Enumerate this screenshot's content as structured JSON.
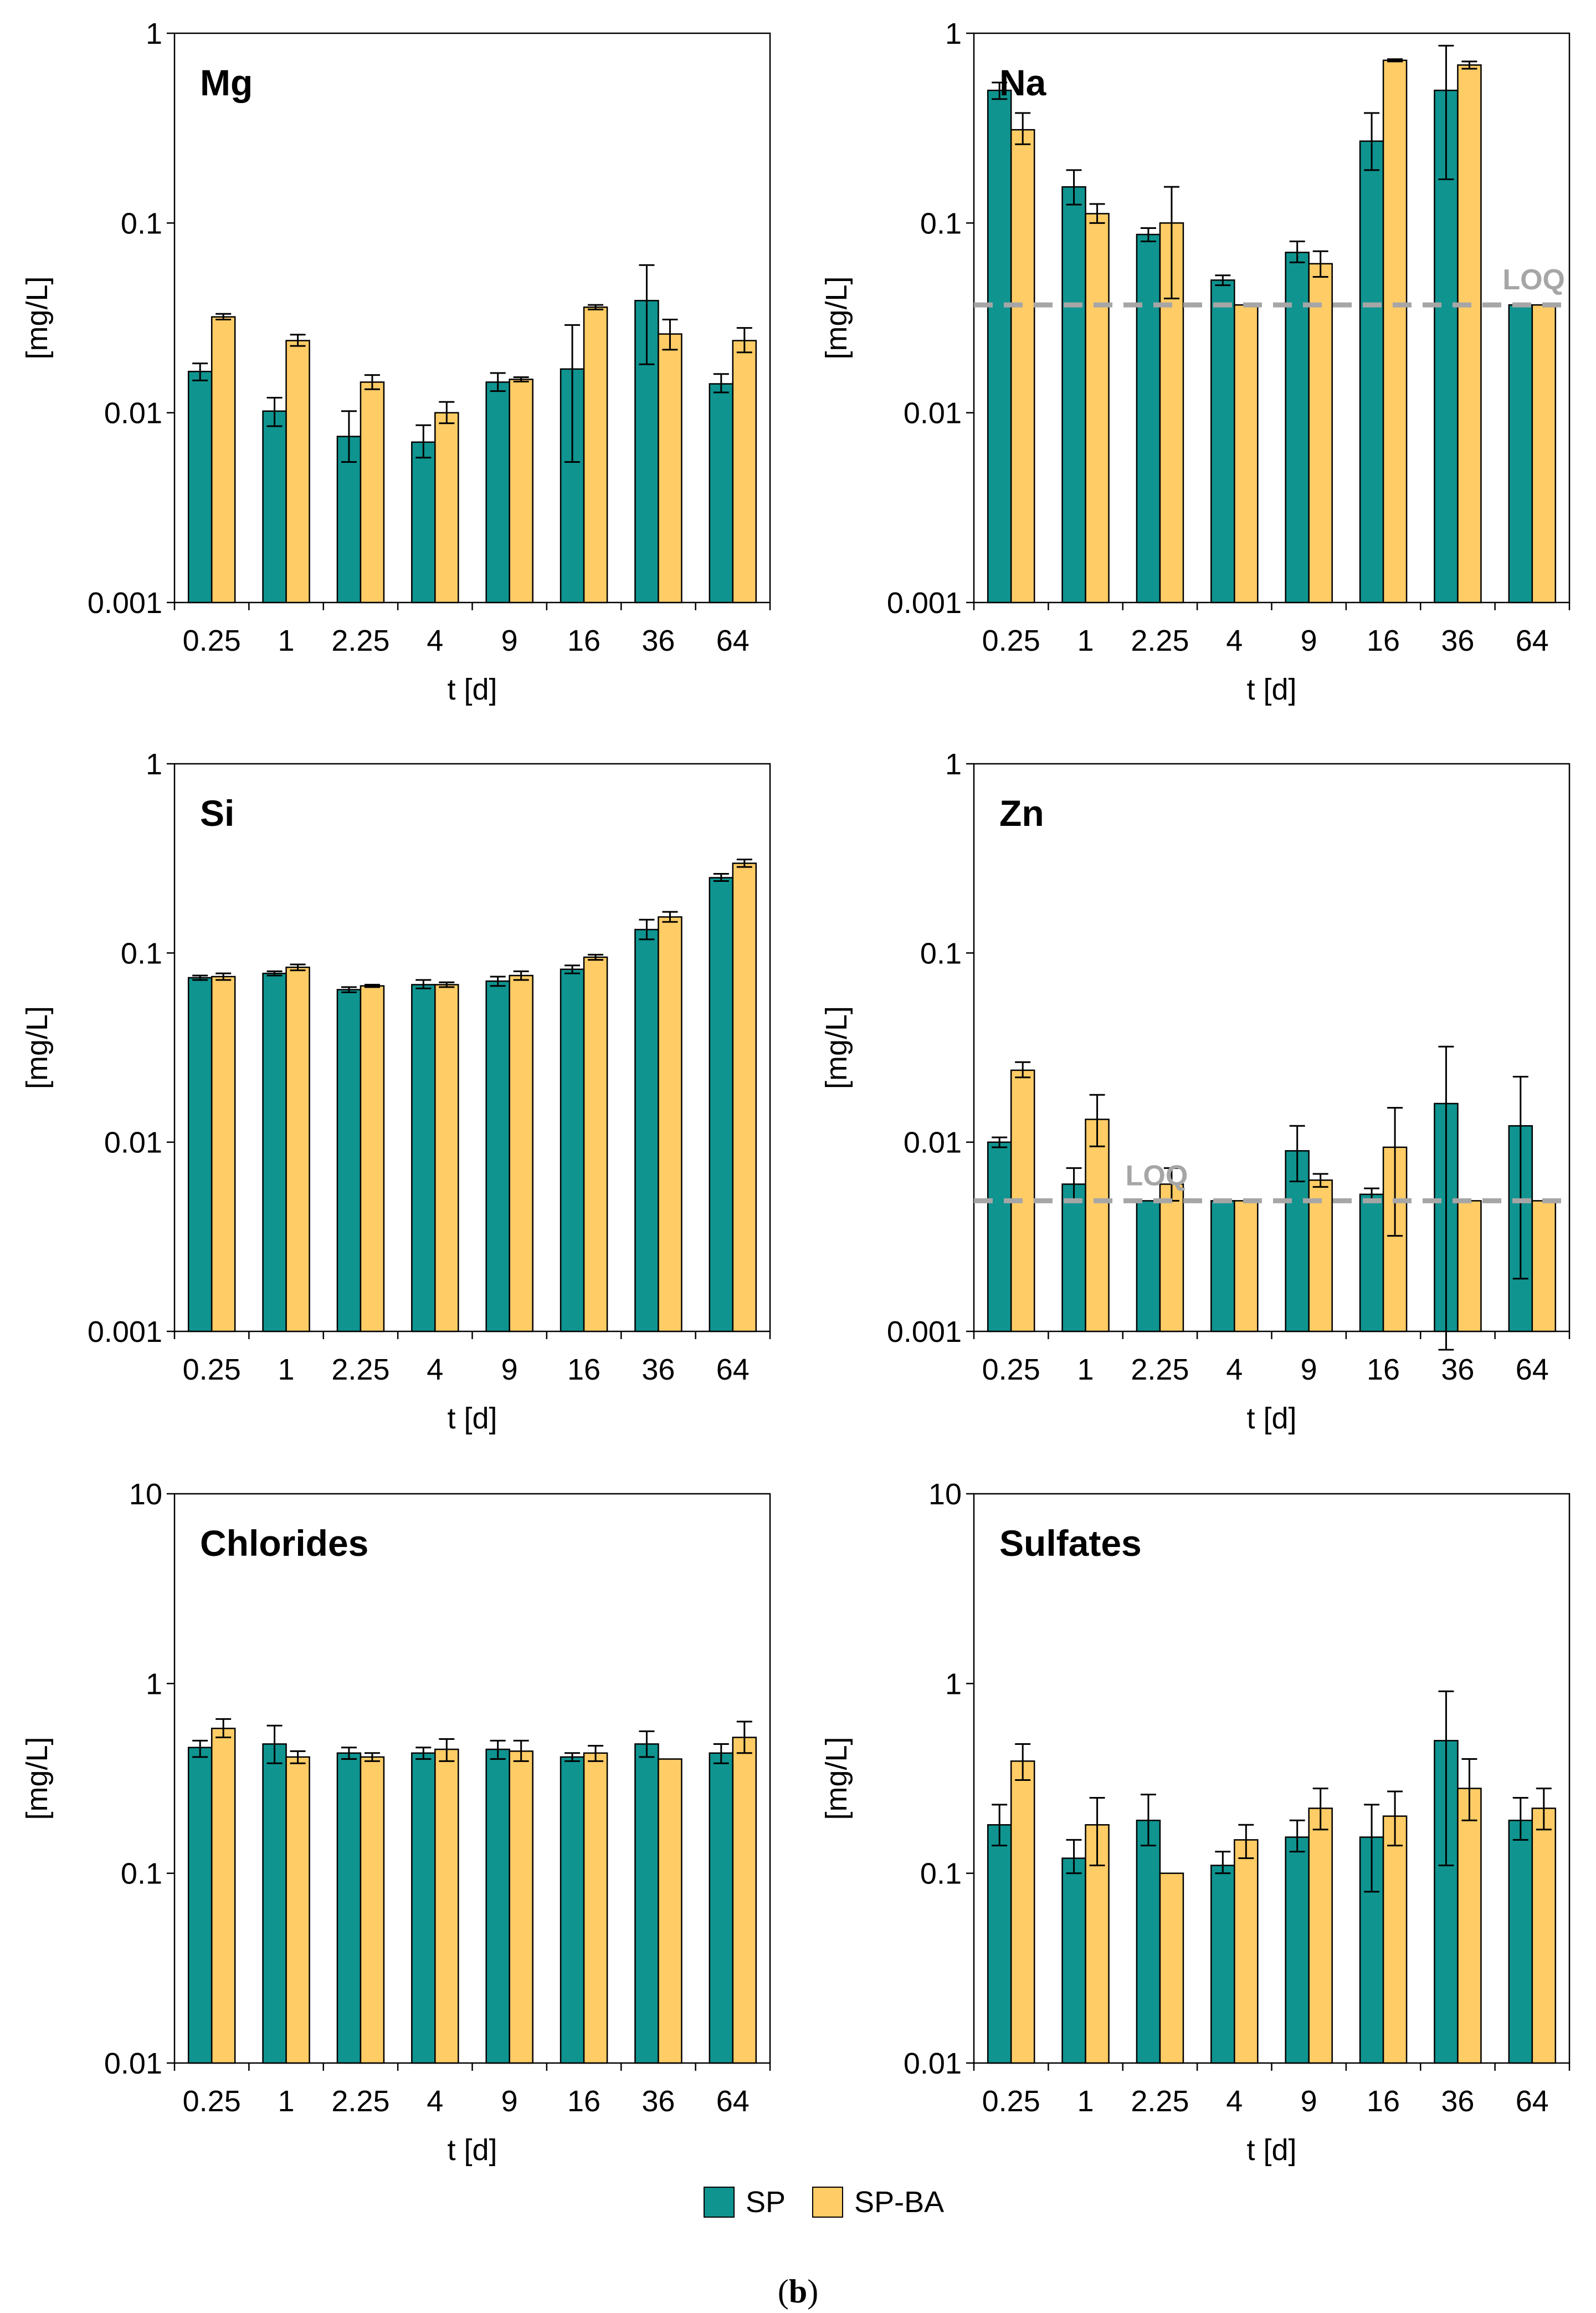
{
  "colors": {
    "SP": "#0f9490",
    "SP-BA": "#ffcc66",
    "loq": "#a6a6a6",
    "error": "#000000"
  },
  "legend": {
    "items": [
      {
        "label": "SP",
        "color": "#0f9490"
      },
      {
        "label": "SP-BA",
        "color": "#ffcc66"
      }
    ]
  },
  "caption": {
    "open": "(",
    "letter": "b",
    "close": ")"
  },
  "chart_data": [
    {
      "type": "bar",
      "scale": "log",
      "title": "Mg",
      "xlabel": "t [d]",
      "ylabel": "[mg/L]",
      "ylim": [
        0.001,
        1
      ],
      "yticks": [
        "0.001",
        "0.01",
        "0.1",
        "1"
      ],
      "categories": [
        "0.25",
        "1",
        "2.25",
        "4",
        "9",
        "16",
        "36",
        "64"
      ],
      "series": [
        {
          "name": "SP",
          "values": [
            0.0165,
            0.0102,
            0.0075,
            0.007,
            0.0145,
            0.017,
            0.039,
            0.0142
          ],
          "err_low": [
            0.0148,
            0.0085,
            0.0055,
            0.0058,
            0.013,
            0.0055,
            0.018,
            0.0128
          ],
          "err_high": [
            0.0182,
            0.012,
            0.0102,
            0.0086,
            0.0162,
            0.029,
            0.06,
            0.016
          ]
        },
        {
          "name": "SP-BA",
          "values": [
            0.032,
            0.024,
            0.0145,
            0.01,
            0.015,
            0.036,
            0.026,
            0.024
          ],
          "err_low": [
            0.031,
            0.0225,
            0.0133,
            0.0088,
            0.0146,
            0.035,
            0.0215,
            0.0208
          ],
          "err_high": [
            0.0332,
            0.0258,
            0.0158,
            0.0114,
            0.0154,
            0.037,
            0.031,
            0.028
          ]
        }
      ]
    },
    {
      "type": "bar",
      "scale": "log",
      "title": "Na",
      "xlabel": "t [d]",
      "ylabel": "[mg/L]",
      "ylim": [
        0.001,
        1
      ],
      "yticks": [
        "0.001",
        "0.01",
        "0.1",
        "1"
      ],
      "categories": [
        "0.25",
        "1",
        "2.25",
        "4",
        "9",
        "16",
        "36",
        "64"
      ],
      "loq": {
        "value": 0.037,
        "label": "LOQ"
      },
      "series": [
        {
          "name": "SP",
          "values": [
            0.5,
            0.155,
            0.087,
            0.05,
            0.07,
            0.27,
            0.5,
            0.037
          ],
          "err_low": [
            0.45,
            0.125,
            0.08,
            0.047,
            0.062,
            0.19,
            0.17,
            null
          ],
          "err_high": [
            0.55,
            0.19,
            0.094,
            0.053,
            0.08,
            0.38,
            0.86,
            null
          ]
        },
        {
          "name": "SP-BA",
          "values": [
            0.31,
            0.112,
            0.1,
            0.037,
            0.061,
            0.72,
            0.68,
            0.037
          ],
          "err_low": [
            0.26,
            0.1,
            0.04,
            null,
            0.052,
            0.71,
            0.65,
            null
          ],
          "err_high": [
            0.38,
            0.126,
            0.155,
            null,
            0.071,
            0.73,
            0.71,
            null
          ]
        }
      ]
    },
    {
      "type": "bar",
      "scale": "log",
      "title": "Si",
      "xlabel": "t [d]",
      "ylabel": "[mg/L]",
      "ylim": [
        0.001,
        1
      ],
      "yticks": [
        "0.001",
        "0.01",
        "0.1",
        "1"
      ],
      "categories": [
        "0.25",
        "1",
        "2.25",
        "4",
        "9",
        "16",
        "36",
        "64"
      ],
      "series": [
        {
          "name": "SP",
          "values": [
            0.074,
            0.078,
            0.064,
            0.068,
            0.071,
            0.082,
            0.133,
            0.25
          ],
          "err_low": [
            0.072,
            0.076,
            0.062,
            0.065,
            0.067,
            0.078,
            0.118,
            0.24
          ],
          "err_high": [
            0.076,
            0.08,
            0.066,
            0.072,
            0.075,
            0.086,
            0.15,
            0.262
          ]
        },
        {
          "name": "SP-BA",
          "values": [
            0.075,
            0.084,
            0.067,
            0.068,
            0.076,
            0.095,
            0.155,
            0.298
          ],
          "err_low": [
            0.072,
            0.081,
            0.066,
            0.066,
            0.072,
            0.092,
            0.146,
            0.285
          ],
          "err_high": [
            0.078,
            0.087,
            0.068,
            0.07,
            0.08,
            0.098,
            0.165,
            0.312
          ]
        }
      ]
    },
    {
      "type": "bar",
      "scale": "log",
      "title": "Zn",
      "xlabel": "t [d]",
      "ylabel": "[mg/L]",
      "ylim": [
        0.001,
        1
      ],
      "yticks": [
        "0.001",
        "0.01",
        "0.1",
        "1"
      ],
      "categories": [
        "0.25",
        "1",
        "2.25",
        "4",
        "9",
        "16",
        "36",
        "64"
      ],
      "loq": {
        "value": 0.0049,
        "label": "LOQ"
      },
      "series": [
        {
          "name": "SP",
          "values": [
            0.01,
            0.006,
            0.0049,
            0.0049,
            0.009,
            0.0053,
            0.016,
            0.0122
          ],
          "err_low": [
            0.0094,
            0.0049,
            null,
            null,
            0.0062,
            0.0049,
            0.0008,
            0.0019
          ],
          "err_high": [
            0.0106,
            0.0073,
            null,
            null,
            0.0122,
            0.0057,
            0.032,
            0.0222
          ]
        },
        {
          "name": "SP-BA",
          "values": [
            0.024,
            0.0132,
            0.006,
            0.0049,
            0.0063,
            0.0094,
            0.0049,
            0.0049
          ],
          "err_low": [
            0.022,
            0.0095,
            0.0049,
            null,
            0.0058,
            0.0032,
            null,
            null
          ],
          "err_high": [
            0.0265,
            0.0178,
            0.0073,
            null,
            0.0068,
            0.0152,
            null,
            null
          ]
        }
      ]
    },
    {
      "type": "bar",
      "scale": "log",
      "title": "Chlorides",
      "xlabel": "t [d]",
      "ylabel": "[mg/L]",
      "ylim": [
        0.01,
        10
      ],
      "yticks": [
        "0.01",
        "0.1",
        "1",
        "10"
      ],
      "categories": [
        "0.25",
        "1",
        "2.25",
        "4",
        "9",
        "16",
        "36",
        "64"
      ],
      "series": [
        {
          "name": "SP",
          "values": [
            0.46,
            0.48,
            0.43,
            0.43,
            0.45,
            0.41,
            0.48,
            0.43
          ],
          "err_low": [
            0.41,
            0.38,
            0.4,
            0.4,
            0.4,
            0.39,
            0.41,
            0.38
          ],
          "err_high": [
            0.5,
            0.6,
            0.46,
            0.46,
            0.5,
            0.43,
            0.56,
            0.48
          ]
        },
        {
          "name": "SP-BA",
          "values": [
            0.58,
            0.41,
            0.41,
            0.45,
            0.44,
            0.43,
            0.4,
            0.52
          ],
          "err_low": [
            0.52,
            0.38,
            0.39,
            0.39,
            0.39,
            0.39,
            null,
            0.43
          ],
          "err_high": [
            0.65,
            0.44,
            0.43,
            0.51,
            0.5,
            0.47,
            null,
            0.63
          ]
        }
      ]
    },
    {
      "type": "bar",
      "scale": "log",
      "title": "Sulfates",
      "xlabel": "t [d]",
      "ylabel": "[mg/L]",
      "ylim": [
        0.01,
        10
      ],
      "yticks": [
        "0.01",
        "0.1",
        "1",
        "10"
      ],
      "categories": [
        "0.25",
        "1",
        "2.25",
        "4",
        "9",
        "16",
        "36",
        "64"
      ],
      "series": [
        {
          "name": "SP",
          "values": [
            0.18,
            0.12,
            0.19,
            0.11,
            0.155,
            0.155,
            0.5,
            0.19
          ],
          "err_low": [
            0.14,
            0.1,
            0.14,
            0.1,
            0.13,
            0.08,
            0.11,
            0.15
          ],
          "err_high": [
            0.23,
            0.15,
            0.26,
            0.13,
            0.19,
            0.23,
            0.91,
            0.25
          ]
        },
        {
          "name": "SP-BA",
          "values": [
            0.39,
            0.18,
            0.1,
            0.15,
            0.22,
            0.2,
            0.28,
            0.22
          ],
          "err_low": [
            0.31,
            0.11,
            null,
            0.12,
            0.17,
            0.14,
            0.19,
            0.17
          ],
          "err_high": [
            0.48,
            0.25,
            null,
            0.18,
            0.28,
            0.27,
            0.4,
            0.28
          ]
        }
      ]
    }
  ]
}
